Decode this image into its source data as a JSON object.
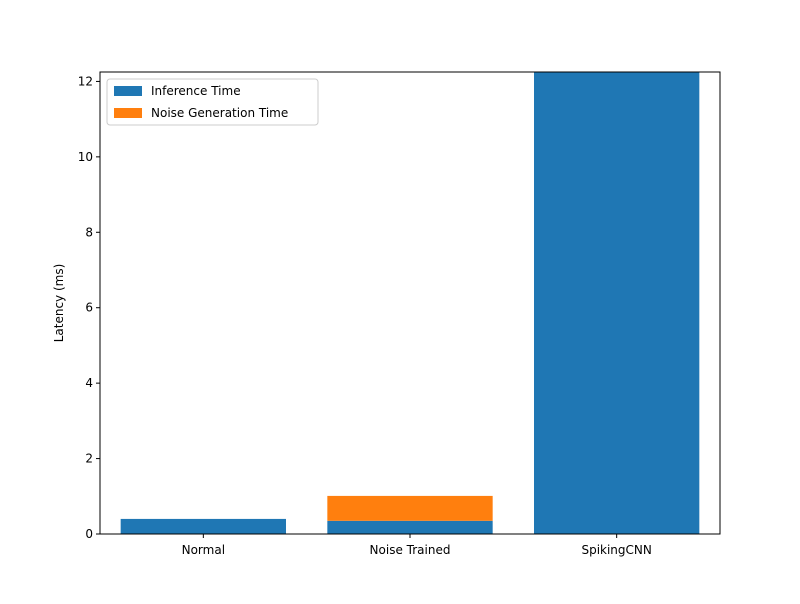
{
  "chart_data": {
    "type": "bar",
    "stacked": true,
    "categories": [
      "Normal",
      "Noise Trained",
      "SpikingCNN"
    ],
    "series": [
      {
        "name": "Inference Time",
        "color": "#1f77b4",
        "values": [
          0.4,
          0.35,
          12.25
        ]
      },
      {
        "name": "Noise Generation Time",
        "color": "#ff7f0e",
        "values": [
          0.0,
          0.66,
          0.0
        ]
      }
    ],
    "xlabel": "",
    "ylabel": "Latency (ms)",
    "ylim": [
      0,
      12.25
    ],
    "yticks": [
      0,
      2,
      4,
      6,
      8,
      10,
      12
    ],
    "grid": false,
    "legend_position": "top-left"
  }
}
